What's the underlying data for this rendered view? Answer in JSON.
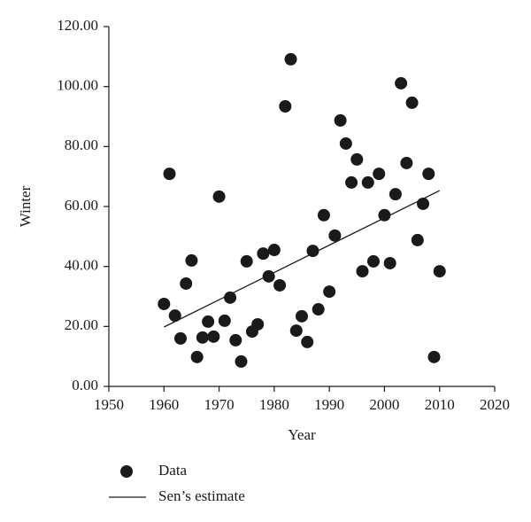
{
  "chart_data": {
    "type": "scatter",
    "x_label": "Year",
    "y_label": "Winter",
    "xlim": [
      1950,
      2020
    ],
    "xticks": [
      1950,
      1960,
      1970,
      1980,
      1990,
      2000,
      2010,
      2020
    ],
    "ylim": [
      0,
      120
    ],
    "yticks": [
      {
        "value": 0,
        "label": "0.00"
      },
      {
        "value": 20,
        "label": "20.00"
      },
      {
        "value": 40,
        "label": "40.00"
      },
      {
        "value": 60,
        "label": "60.00"
      },
      {
        "value": 80,
        "label": "80.00"
      },
      {
        "value": 100,
        "label": "100.00"
      },
      {
        "value": 120,
        "label": "120.00"
      }
    ],
    "series": [
      {
        "name": "Data",
        "color": "#1a1a1a",
        "mode": "markers",
        "x": [
          1960,
          1961,
          1962,
          1963,
          1964,
          1965,
          1966,
          1967,
          1968,
          1969,
          1970,
          1971,
          1972,
          1973,
          1974,
          1975,
          1976,
          1977,
          1978,
          1979,
          1980,
          1981,
          1982,
          1983,
          1984,
          1985,
          1986,
          1987,
          1988,
          1989,
          1990,
          1991,
          1992,
          1993,
          1994,
          1995,
          1996,
          1997,
          1998,
          1999,
          2000,
          2001,
          2002,
          2003,
          2004,
          2005,
          2006,
          2007,
          2008,
          2009,
          2010
        ],
        "values": [
          27.5,
          70.9,
          23.6,
          16.0,
          34.3,
          42.0,
          9.8,
          16.3,
          21.6,
          16.6,
          63.3,
          21.9,
          29.6,
          15.4,
          8.3,
          41.7,
          18.3,
          20.7,
          44.3,
          36.7,
          45.5,
          33.7,
          93.4,
          109.1,
          18.6,
          23.4,
          14.8,
          45.2,
          25.7,
          57.1,
          31.6,
          50.3,
          88.7,
          81.0,
          68.0,
          75.7,
          38.4,
          68.0,
          41.7,
          70.9,
          57.1,
          41.1,
          64.1,
          101.1,
          74.5,
          94.6,
          48.8,
          60.9,
          70.9,
          9.8,
          38.4
        ]
      },
      {
        "name": "Sen’s estimate",
        "color": "#1a1a1a",
        "mode": "line",
        "x": [
          1960,
          2010
        ],
        "values": [
          19.8,
          65.3
        ]
      }
    ]
  }
}
